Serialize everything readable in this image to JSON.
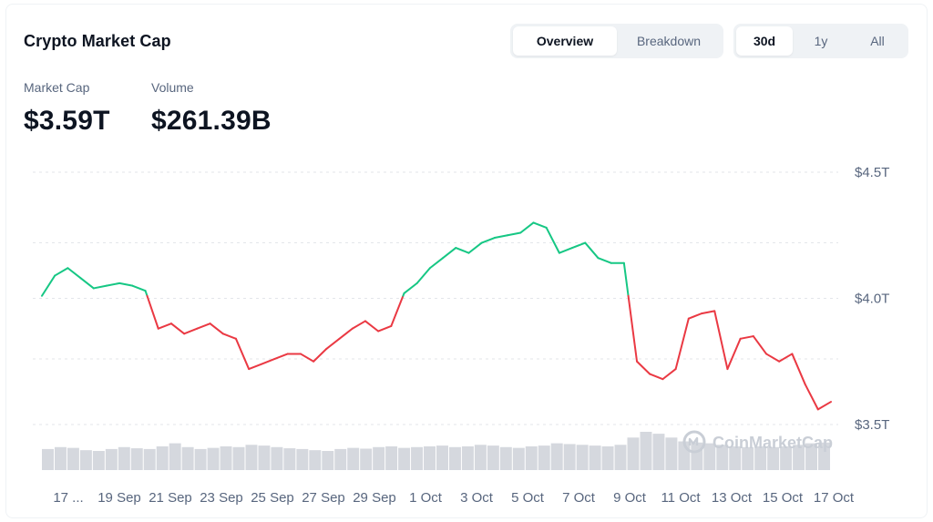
{
  "header": {
    "title": "Crypto Market Cap"
  },
  "view_toggle": {
    "options": [
      "Overview",
      "Breakdown"
    ],
    "active": "Overview"
  },
  "range_toggle": {
    "options": [
      "30d",
      "1y",
      "All"
    ],
    "active": "30d"
  },
  "stats": {
    "market_cap": {
      "label": "Market Cap",
      "value": "$3.59T"
    },
    "volume": {
      "label": "Volume",
      "value": "$261.39B"
    }
  },
  "watermark": {
    "text": "CoinMarketCap",
    "icon": "coinmarketcap-logo-icon"
  },
  "colors": {
    "up": "#16c784",
    "down": "#ea3943",
    "grid": "#e3e6ea",
    "volume": "#d5d8de",
    "text_muted": "#58667e"
  },
  "chart_data": {
    "type": "line",
    "title": "",
    "xlabel": "",
    "ylabel": "",
    "y_tick_labels": [
      "$3.5T",
      "$4.0T",
      "$4.5T"
    ],
    "y_ticks": [
      3.5,
      4.0,
      4.5
    ],
    "ylim": [
      3.5,
      4.5
    ],
    "x_tick_labels": [
      "17 ...",
      "19 Sep",
      "21 Sep",
      "23 Sep",
      "25 Sep",
      "27 Sep",
      "29 Sep",
      "1 Oct",
      "3 Oct",
      "5 Oct",
      "7 Oct",
      "9 Oct",
      "11 Oct",
      "13 Oct",
      "15 Oct",
      "17 Oct"
    ],
    "grid": true,
    "color_rule": "green above baseline, red below baseline",
    "baseline": 4.01,
    "series": [
      {
        "name": "",
        "x": [
          "17 Sep",
          "17 Sep",
          "18 Sep",
          "18 Sep",
          "19 Sep",
          "19 Sep",
          "20 Sep",
          "20 Sep",
          "21 Sep",
          "21 Sep",
          "22 Sep",
          "22 Sep",
          "23 Sep",
          "23 Sep",
          "24 Sep",
          "24 Sep",
          "25 Sep",
          "25 Sep",
          "26 Sep",
          "26 Sep",
          "27 Sep",
          "27 Sep",
          "28 Sep",
          "28 Sep",
          "29 Sep",
          "29 Sep",
          "30 Sep",
          "30 Sep",
          "1 Oct",
          "1 Oct",
          "2 Oct",
          "2 Oct",
          "3 Oct",
          "3 Oct",
          "4 Oct",
          "4 Oct",
          "5 Oct",
          "5 Oct",
          "6 Oct",
          "6 Oct",
          "7 Oct",
          "7 Oct",
          "8 Oct",
          "8 Oct",
          "9 Oct",
          "9 Oct",
          "10 Oct",
          "10 Oct",
          "11 Oct",
          "11 Oct",
          "12 Oct",
          "12 Oct",
          "13 Oct",
          "13 Oct",
          "14 Oct",
          "14 Oct",
          "15 Oct",
          "15 Oct",
          "16 Oct",
          "16 Oct",
          "17 Oct",
          "17 Oct"
        ],
        "values": [
          4.01,
          4.09,
          4.12,
          4.08,
          4.04,
          4.05,
          4.06,
          4.05,
          4.03,
          3.88,
          3.9,
          3.86,
          3.88,
          3.9,
          3.86,
          3.84,
          3.72,
          3.74,
          3.76,
          3.78,
          3.78,
          3.75,
          3.8,
          3.84,
          3.88,
          3.91,
          3.87,
          3.89,
          4.02,
          4.06,
          4.12,
          4.16,
          4.2,
          4.18,
          4.22,
          4.24,
          4.25,
          4.26,
          4.3,
          4.28,
          4.18,
          4.2,
          4.22,
          4.16,
          4.14,
          4.14,
          3.75,
          3.7,
          3.68,
          3.72,
          3.92,
          3.94,
          3.95,
          3.72,
          3.84,
          3.85,
          3.78,
          3.75,
          3.78,
          3.66,
          3.56,
          3.59
        ]
      }
    ],
    "volume_relative": [
      0.55,
      0.6,
      0.58,
      0.52,
      0.5,
      0.55,
      0.6,
      0.57,
      0.55,
      0.62,
      0.7,
      0.6,
      0.55,
      0.58,
      0.62,
      0.6,
      0.66,
      0.64,
      0.6,
      0.57,
      0.55,
      0.52,
      0.5,
      0.55,
      0.58,
      0.56,
      0.6,
      0.62,
      0.58,
      0.6,
      0.62,
      0.64,
      0.6,
      0.62,
      0.66,
      0.64,
      0.6,
      0.58,
      0.62,
      0.64,
      0.7,
      0.68,
      0.66,
      0.64,
      0.62,
      0.66,
      0.85,
      1.0,
      0.95,
      0.85,
      0.75,
      0.72,
      0.7,
      0.66,
      0.62,
      0.6,
      0.62,
      0.6,
      0.62,
      0.66,
      0.7,
      0.72
    ]
  }
}
